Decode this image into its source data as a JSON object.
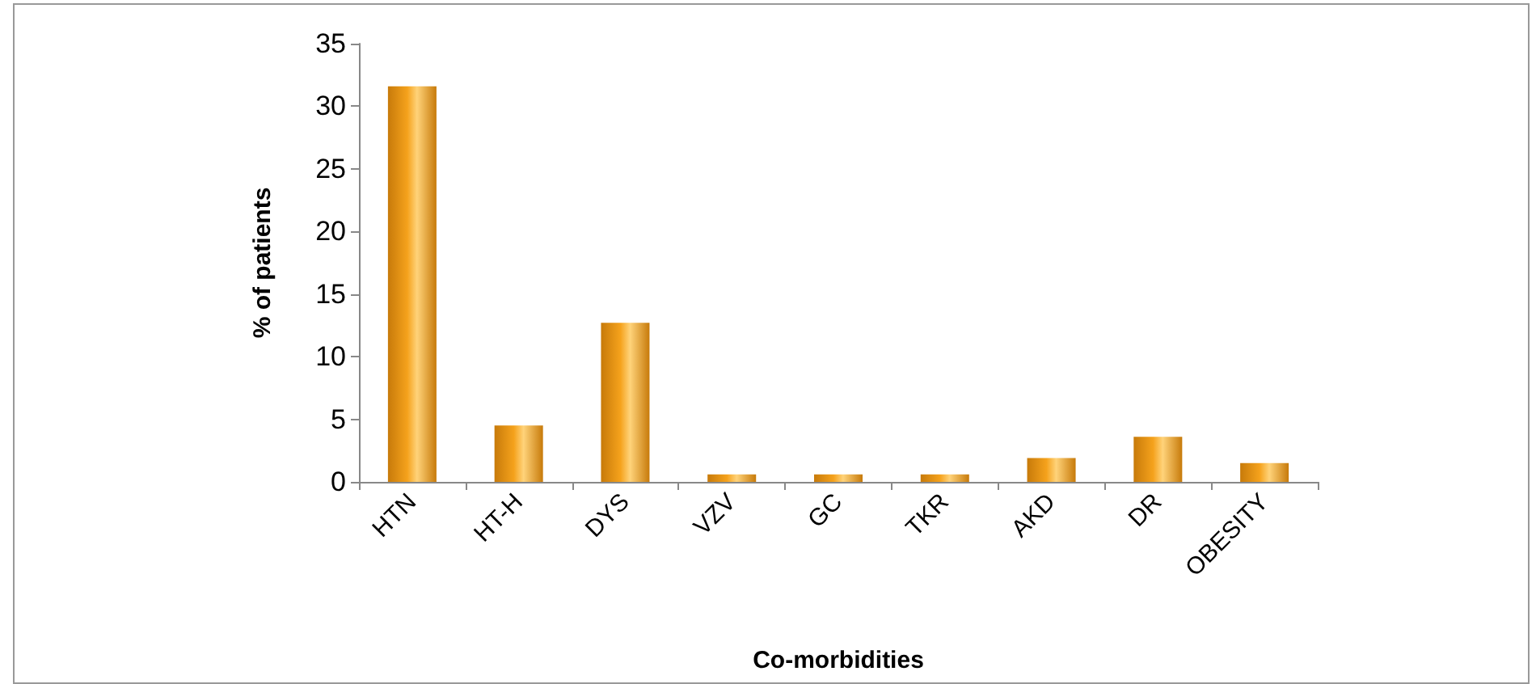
{
  "chart_data": {
    "type": "bar",
    "xlabel": "Co-morbidities",
    "ylabel": "% of patients",
    "categories": [
      "HTN",
      "HT-H",
      "DYS",
      "VZV",
      "GC",
      "TKR",
      "AKD",
      "DR",
      "OBESITY"
    ],
    "values": [
      31.6,
      4.5,
      12.7,
      0.6,
      0.6,
      0.6,
      1.9,
      3.6,
      1.5
    ],
    "color": "#f5a21c",
    "ylim": [
      0,
      35
    ],
    "yticks": [
      0,
      5,
      10,
      15,
      20,
      25,
      30,
      35
    ],
    "grid": false
  }
}
